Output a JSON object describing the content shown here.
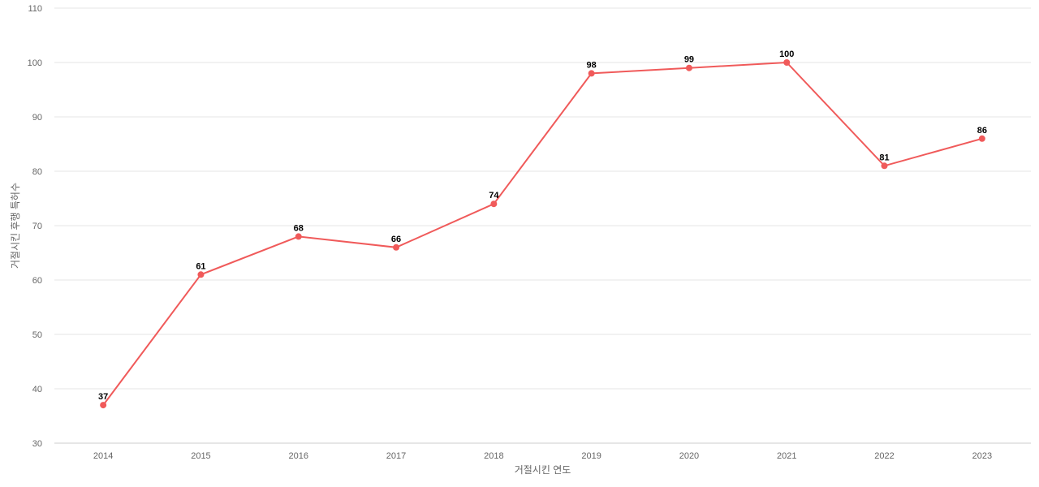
{
  "chart_data": {
    "type": "line",
    "title": "",
    "xlabel": "거절시킨 연도",
    "ylabel": "거절시킨 후행 특허수",
    "categories": [
      "2014",
      "2015",
      "2016",
      "2017",
      "2018",
      "2019",
      "2020",
      "2021",
      "2022",
      "2023"
    ],
    "series": [
      {
        "values": [
          37,
          61,
          68,
          66,
          74,
          98,
          99,
          100,
          81,
          86
        ],
        "color": "#f05a5a"
      }
    ],
    "ylim": [
      30,
      110
    ],
    "yticks": [
      30,
      40,
      50,
      60,
      70,
      80,
      90,
      100,
      110
    ],
    "grid": true,
    "legend": "none",
    "data_labels": true
  }
}
